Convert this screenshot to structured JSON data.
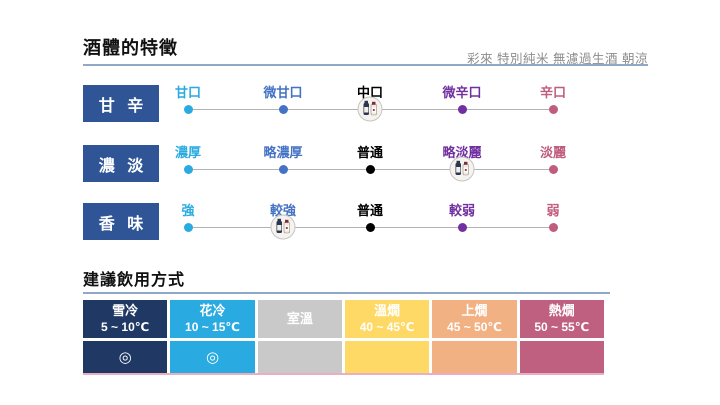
{
  "header": {
    "title": "酒體的特徵",
    "product_name": "彩來 特別純米 無濾過生酒 朝涼"
  },
  "scales": [
    {
      "name": "甘 辛",
      "levels": [
        {
          "label": "甘口",
          "color": "#29abe2"
        },
        {
          "label": "微甘口",
          "color": "#4472c4"
        },
        {
          "label": "中口",
          "color": "#000000"
        },
        {
          "label": "微辛口",
          "color": "#7030a0"
        },
        {
          "label": "辛口",
          "color": "#c05c7e"
        }
      ],
      "selected_index": 2,
      "selected_label": "中口"
    },
    {
      "name": "濃 淡",
      "levels": [
        {
          "label": "濃厚",
          "color": "#29abe2"
        },
        {
          "label": "略濃厚",
          "color": "#4472c4"
        },
        {
          "label": "普通",
          "color": "#000000"
        },
        {
          "label": "略淡麗",
          "color": "#7030a0"
        },
        {
          "label": "淡麗",
          "color": "#c05c7e"
        }
      ],
      "selected_index": 3,
      "selected_label": "略淡麗"
    },
    {
      "name": "香 味",
      "levels": [
        {
          "label": "強",
          "color": "#29abe2"
        },
        {
          "label": "較強",
          "color": "#4472c4"
        },
        {
          "label": "普通",
          "color": "#000000"
        },
        {
          "label": "較弱",
          "color": "#7030a0"
        },
        {
          "label": "弱",
          "color": "#c05c7e"
        }
      ],
      "selected_index": 1,
      "selected_label": "較強"
    }
  ],
  "serving": {
    "title": "建議飲用方式",
    "columns": [
      {
        "name": "雪冷",
        "temp": "5 ~ 10℃",
        "color": "#203864",
        "recommended": "◎"
      },
      {
        "name": "花冷",
        "temp": "10 ~ 15℃",
        "color": "#29abe2",
        "recommended": "◎"
      },
      {
        "name": "室溫",
        "temp": "",
        "color": "#c9c9c9",
        "recommended": ""
      },
      {
        "name": "溫燗",
        "temp": "40 ~ 45℃",
        "color": "#ffd966",
        "recommended": ""
      },
      {
        "name": "上燗",
        "temp": "45 ~ 50℃",
        "color": "#f2b183",
        "recommended": ""
      },
      {
        "name": "熱燗",
        "temp": "50 ~ 55℃",
        "color": "#c06080",
        "recommended": ""
      }
    ]
  },
  "ui_colors": {
    "scale_box_bg": "#2f5597",
    "rule_blue": "#8fa9c7",
    "track_gray": "#b3b3b3",
    "table_bottom_border_pink": "#e9aec0",
    "product_name_gray": "#8c8c8c"
  }
}
